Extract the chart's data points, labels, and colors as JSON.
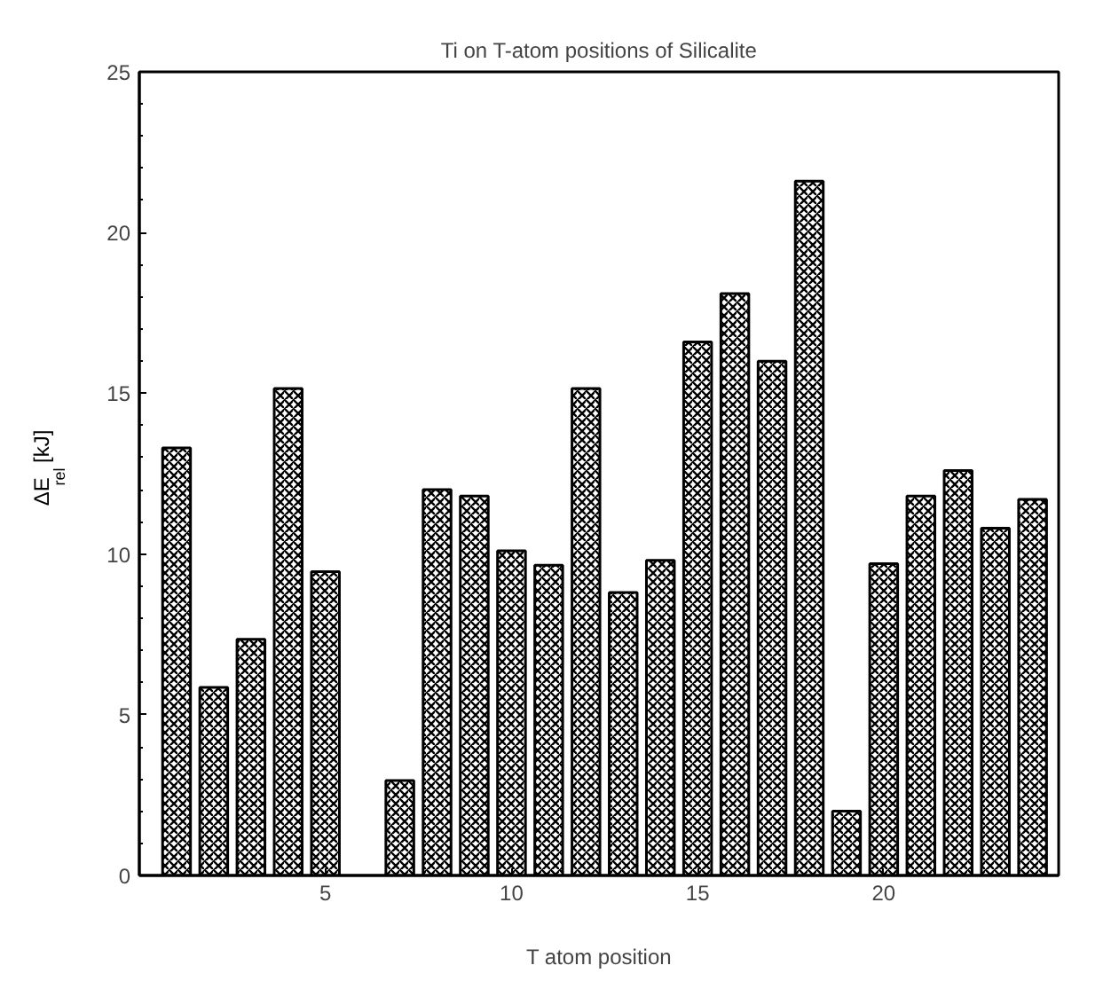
{
  "chart_data": {
    "type": "bar",
    "title": "Ti on T-atom positions of Silicalite",
    "xlabel": "T atom position",
    "ylabel": "ΔE$_{rel}$ [kJ]",
    "x": [
      1,
      2,
      3,
      4,
      5,
      6,
      7,
      8,
      9,
      10,
      11,
      12,
      13,
      14,
      15,
      16,
      17,
      18,
      19,
      20,
      21,
      22,
      23,
      24
    ],
    "values": [
      13.3,
      5.85,
      7.35,
      15.15,
      9.45,
      null,
      2.95,
      12.0,
      11.8,
      10.1,
      9.65,
      15.15,
      8.8,
      9.8,
      16.6,
      18.1,
      16.0,
      21.6,
      2.0,
      9.7,
      11.8,
      12.6,
      10.8,
      11.7
    ],
    "color": "#000000",
    "xlim": [
      0,
      24.7
    ],
    "xticks": [
      5,
      10,
      15,
      20
    ],
    "ylim": [
      0,
      25
    ],
    "yticks": [
      0,
      5,
      10,
      15,
      20,
      25
    ],
    "grid": false
  }
}
